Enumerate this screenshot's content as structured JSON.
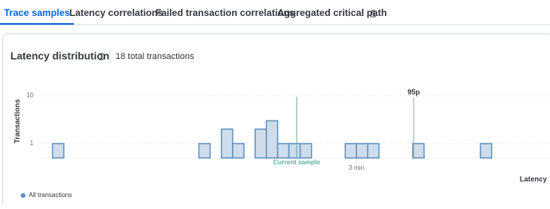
{
  "tabs": [
    {
      "label": "Trace samples",
      "active": true
    },
    {
      "label": "Latency correlations"
    },
    {
      "label": "Failed transaction correlations"
    },
    {
      "label": "Aggregated critical path"
    }
  ],
  "panel": {
    "title": "Latency distribution",
    "summary": "18 total transactions"
  },
  "chart_data": {
    "type": "histogram",
    "name": "All transactions",
    "color": "#6092c0",
    "bins": [
      7.2,
      13.6,
      20,
      26.4,
      32.8,
      39.2,
      45.6,
      52,
      58.4,
      64.8,
      71.2,
      77.6,
      84,
      90.4,
      96.8,
      103.2,
      109.6,
      116,
      122.4,
      128.8,
      135.2,
      141.6,
      148,
      154.4,
      160.8,
      167.2,
      173.6,
      180,
      186.4,
      192.8,
      199.2,
      205.6,
      212,
      218.4,
      224.8,
      231.2,
      237.6,
      244,
      250.4,
      256.8
    ],
    "values": [
      1,
      0,
      0,
      0,
      0,
      0,
      0,
      0,
      0,
      0,
      0,
      0,
      0,
      1,
      0,
      2,
      1,
      0,
      2,
      3,
      1,
      1,
      1,
      0,
      0,
      0,
      1,
      1,
      1,
      0,
      0,
      0,
      1,
      0,
      0,
      0,
      0,
      0,
      1
    ],
    "ylabel": "Transactions",
    "xlabel": "Latency",
    "ylog": true,
    "ylim": [
      0.5,
      20
    ],
    "yticks": [
      1,
      10
    ],
    "xlim": [
      0,
      290
    ],
    "xticks": [
      {
        "value": 180,
        "label": "3 min"
      }
    ],
    "grid": true,
    "annotations": [
      {
        "label": "Current sample",
        "x": 146,
        "color": "#54b399"
      },
      {
        "label": "95p",
        "x": 212.5,
        "color": "#98a2b3"
      }
    ]
  }
}
